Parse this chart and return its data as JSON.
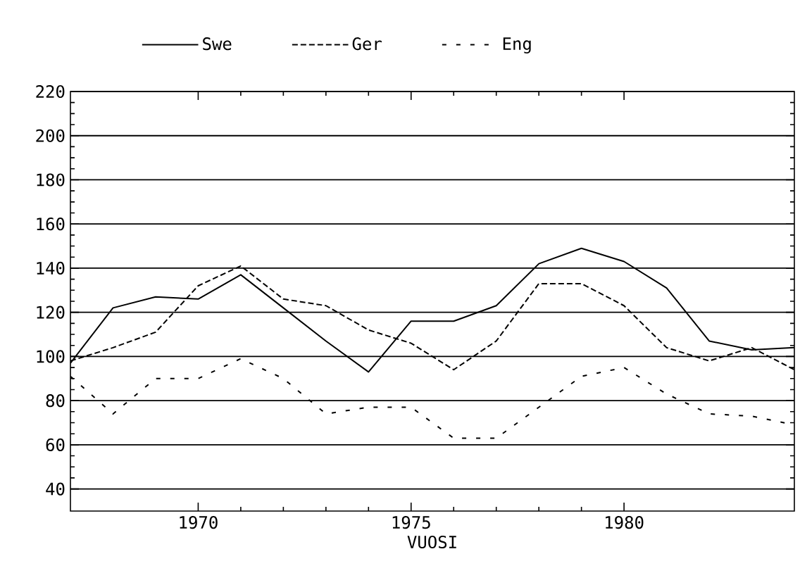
{
  "chart_data": {
    "type": "line",
    "xlabel": "VUOSI",
    "x": [
      1967,
      1968,
      1969,
      1970,
      1971,
      1972,
      1973,
      1974,
      1975,
      1976,
      1977,
      1978,
      1979,
      1980,
      1981,
      1982,
      1983,
      1984
    ],
    "series": [
      {
        "name": "Swe",
        "color": "#000000",
        "line_style": "solid",
        "values": [
          97,
          122,
          127,
          126,
          137,
          122,
          107,
          93,
          116,
          116,
          123,
          142,
          149,
          143,
          131,
          107,
          103,
          104
        ]
      },
      {
        "name": "Ger",
        "color": "#000000",
        "line_style": "dashed",
        "values": [
          98,
          104,
          111,
          132,
          141,
          126,
          123,
          112,
          106,
          94,
          107,
          133,
          133,
          123,
          104,
          98,
          104,
          94
        ]
      },
      {
        "name": "Eng",
        "color": "#000000",
        "line_style": "dotted",
        "values": [
          91,
          74,
          90,
          90,
          99,
          90,
          74,
          77,
          77,
          63,
          63,
          77,
          91,
          95,
          83,
          74,
          73,
          69
        ]
      }
    ],
    "xlim": [
      1967,
      1984
    ],
    "ylim": [
      30,
      220
    ],
    "xticks": [
      1970,
      1975,
      1980
    ],
    "yticks": [
      40,
      60,
      80,
      100,
      120,
      140,
      160,
      180,
      200,
      220
    ],
    "grid": "y",
    "legend": "top",
    "marker": "none"
  }
}
